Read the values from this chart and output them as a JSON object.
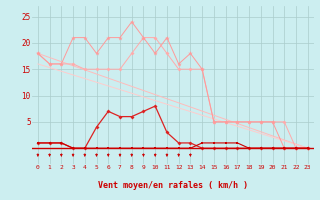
{
  "background_color": "#cceef0",
  "grid_color": "#aacccc",
  "xlabel": "Vent moyen/en rafales ( km/h )",
  "ylim": [
    0,
    27
  ],
  "yticks": [
    0,
    5,
    10,
    15,
    20,
    25
  ],
  "xlim": [
    -0.5,
    23.5
  ],
  "line_rafales_max_x": [
    0,
    1,
    2,
    3,
    4,
    5,
    6,
    7,
    8,
    9,
    10,
    11,
    12,
    13,
    14,
    15,
    16,
    17,
    18,
    19,
    20,
    21,
    22,
    23
  ],
  "line_rafales_max_y": [
    18,
    16,
    16,
    21,
    21,
    18,
    21,
    21,
    24,
    21,
    18,
    21,
    16,
    18,
    15,
    5,
    5,
    5,
    5,
    5,
    5,
    0,
    0,
    0
  ],
  "line_rafales_max_color": "#ff9999",
  "line_rafales_mid_x": [
    0,
    1,
    2,
    3,
    4,
    5,
    6,
    7,
    8,
    9,
    10,
    11,
    12,
    13,
    14,
    15,
    16,
    17,
    18,
    19,
    20,
    21,
    22,
    23
  ],
  "line_rafales_mid_y": [
    18,
    16,
    16,
    16,
    15,
    15,
    15,
    15,
    18,
    21,
    21,
    18,
    15,
    15,
    15,
    5,
    5,
    5,
    5,
    5,
    5,
    5,
    0,
    0
  ],
  "line_rafales_mid_color": "#ffaaaa",
  "trend1_x": [
    0,
    23
  ],
  "trend1_y": [
    18,
    0
  ],
  "trend1_color": "#ffbbbb",
  "trend2_x": [
    0,
    23
  ],
  "trend2_y": [
    16,
    0
  ],
  "trend2_color": "#ffcccc",
  "line_vent_main_x": [
    0,
    1,
    2,
    3,
    4,
    5,
    6,
    7,
    8,
    9,
    10,
    11,
    12,
    13,
    14,
    15,
    16,
    17,
    18,
    19,
    20,
    21,
    22,
    23
  ],
  "line_vent_main_y": [
    1,
    1,
    1,
    0,
    0,
    4,
    7,
    6,
    6,
    7,
    8,
    3,
    1,
    1,
    0,
    0,
    0,
    0,
    0,
    0,
    0,
    0,
    0,
    0
  ],
  "line_vent_main_color": "#dd2222",
  "line_vent_low_x": [
    0,
    1,
    2,
    3,
    4,
    5,
    6,
    7,
    8,
    9,
    10,
    11,
    12,
    13,
    14,
    15,
    16,
    17,
    18,
    19,
    20,
    21,
    22,
    23
  ],
  "line_vent_low_y": [
    1,
    1,
    1,
    0,
    0,
    0,
    0,
    0,
    0,
    0,
    0,
    0,
    0,
    0,
    1,
    1,
    1,
    1,
    0,
    0,
    0,
    0,
    0,
    0
  ],
  "line_vent_low_color": "#cc0000",
  "arrows_x": [
    0,
    1,
    2,
    3,
    4,
    5,
    6,
    7,
    8,
    9,
    10,
    11,
    12,
    13
  ],
  "arrow_color": "#cc0000",
  "x_labels": [
    "0",
    "1",
    "2",
    "3",
    "4",
    "5",
    "6",
    "7",
    "8",
    "9",
    "10",
    "11",
    "12",
    "13",
    "14",
    "15",
    "16",
    "17",
    "18",
    "19",
    "20",
    "21",
    "22",
    "23"
  ]
}
